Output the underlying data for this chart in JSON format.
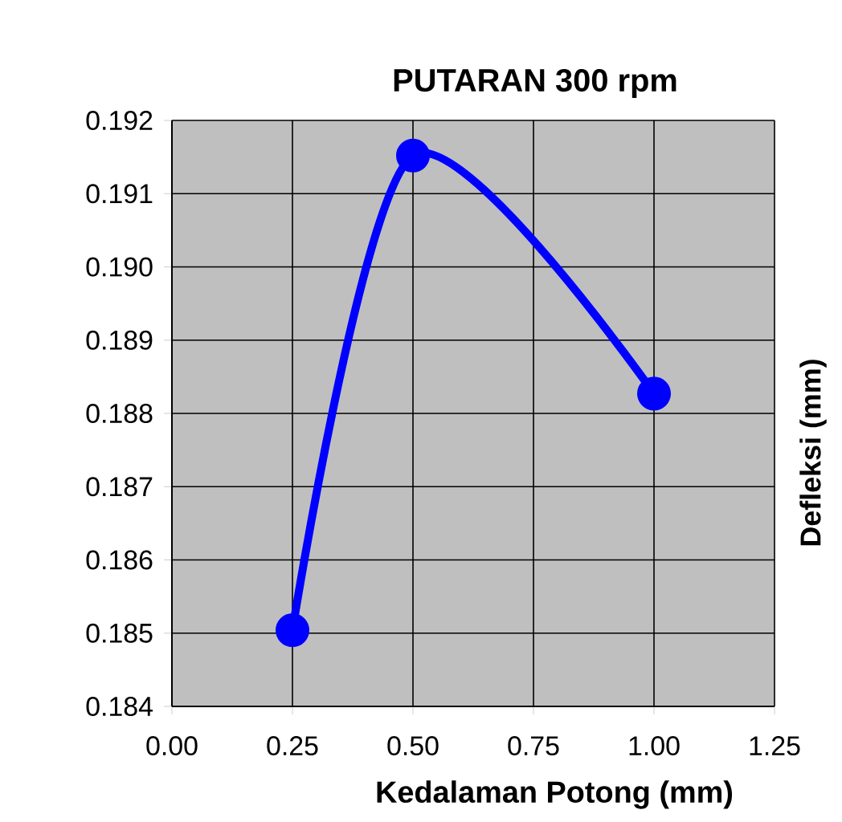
{
  "chart_data": {
    "type": "line",
    "title": "PUTARAN 300 rpm",
    "xlabel": "Kedalaman Potong (mm)",
    "ylabel": "Defleksi (mm)",
    "x": [
      0.25,
      0.5,
      1.0
    ],
    "series": [
      {
        "color": "#0000ff",
        "values": [
          0.18504,
          0.19152,
          0.18827
        ]
      }
    ],
    "xlim": [
      0,
      1.25
    ],
    "xticks": [
      {
        "value": 0,
        "label": "0.00"
      },
      {
        "value": 0.25,
        "label": "0.25"
      },
      {
        "value": 0.5,
        "label": "0.50"
      },
      {
        "value": 0.75,
        "label": "0.75"
      },
      {
        "value": 1.0,
        "label": "1.00"
      },
      {
        "value": 1.25,
        "label": "1.25"
      }
    ],
    "ylim": [
      0.184,
      0.192
    ],
    "yticks": [
      0.184,
      0.185,
      0.186,
      0.187,
      0.188,
      0.189,
      {
        "value": 0.19,
        "label": "0.190"
      },
      0.191,
      0.192
    ],
    "grid": true,
    "marker": "circle",
    "line_style": "solid"
  }
}
